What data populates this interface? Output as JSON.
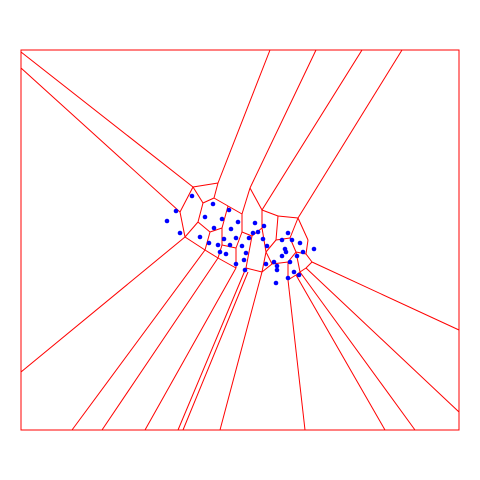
{
  "diagram": {
    "type": "voronoi",
    "colors": {
      "edges": "#ff0000",
      "sites": "#0000ff",
      "background": "#ffffff"
    }
  }
}
